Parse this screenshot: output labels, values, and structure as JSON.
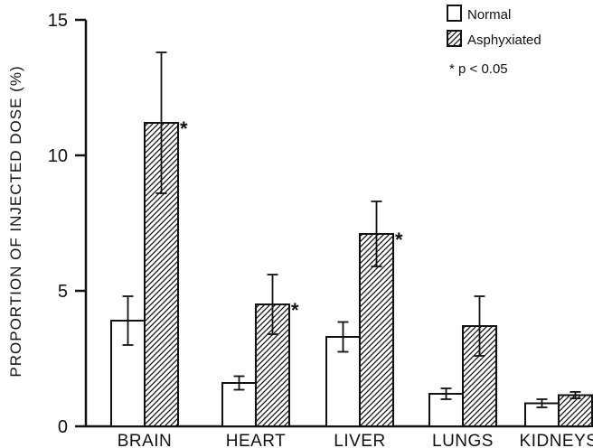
{
  "chart_data": {
    "type": "bar",
    "ylabel": "PROPORTION OF INJECTED DOSE (%)",
    "xlabel": "",
    "ylim": [
      0,
      15
    ],
    "yticks": [
      0,
      5,
      10,
      15
    ],
    "ytick_labels": [
      "0",
      "5",
      "10",
      "15"
    ],
    "categories": [
      "BRAIN",
      "HEART",
      "LIVER",
      "LUNGS",
      "KIDNEYS"
    ],
    "series": [
      {
        "name": "Normal",
        "pattern": "open",
        "values": [
          3.9,
          1.6,
          3.3,
          1.2,
          0.85
        ],
        "errors": [
          0.9,
          0.25,
          0.55,
          0.2,
          0.15
        ]
      },
      {
        "name": "Asphyxiated",
        "pattern": "hatched",
        "values": [
          11.2,
          4.5,
          7.1,
          3.7,
          1.15
        ],
        "errors": [
          2.6,
          1.1,
          1.2,
          1.1,
          0.12
        ]
      }
    ],
    "significance_marker": "*",
    "significant": [
      [
        false,
        false,
        false,
        false,
        false
      ],
      [
        true,
        true,
        true,
        false,
        false
      ]
    ],
    "legend": {
      "position": "top-right",
      "entries": [
        "Normal",
        "Asphyxiated",
        "p < 0.05"
      ],
      "significance_label": "* p < 0.05"
    },
    "grid": false,
    "colors": {
      "ink": "#111111",
      "background": "#ffffff"
    }
  }
}
